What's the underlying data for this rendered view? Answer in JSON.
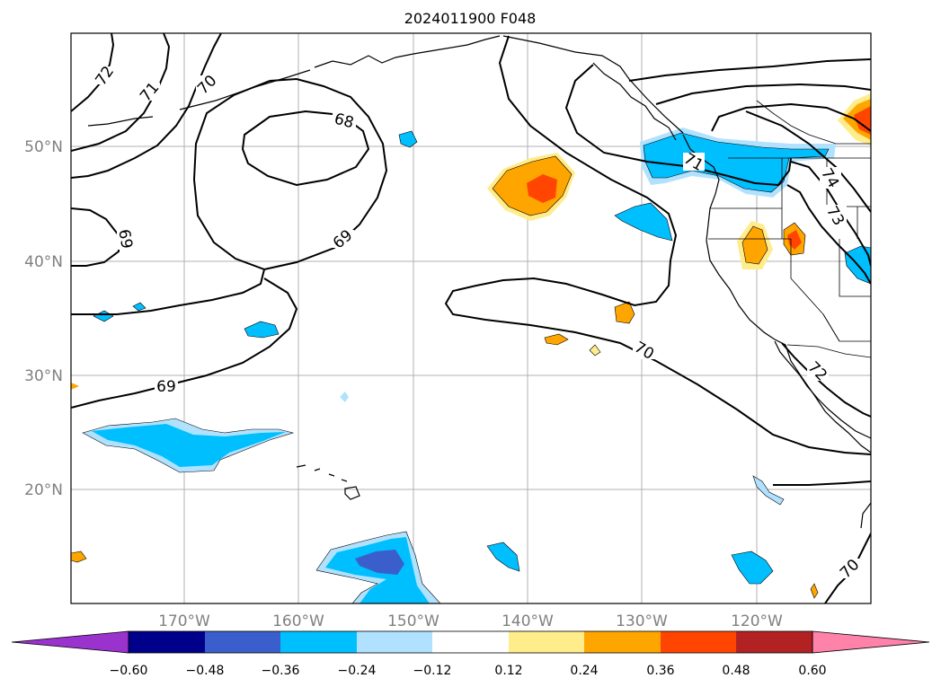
{
  "title": "2024011900 F048",
  "lat_labels": [
    "50°N",
    "40°N",
    "30°N",
    "20°N"
  ],
  "lon_labels": [
    "170°W",
    "160°W",
    "150°W",
    "140°W",
    "130°W",
    "120°W"
  ],
  "contour_labels": [
    "72",
    "71",
    "70",
    "68",
    "69",
    "69",
    "69",
    "74",
    "73",
    "71",
    "70",
    "72",
    "70"
  ],
  "colorbar": {
    "ticks": [
      "−0.60",
      "−0.48",
      "−0.36",
      "−0.24",
      "−0.12",
      "0.12",
      "0.24",
      "0.36",
      "0.48",
      "0.60"
    ],
    "colors": [
      "#9a32cd",
      "#00008b",
      "#3a5fcd",
      "#00bfff",
      "#b0e2ff",
      "#ffffff",
      "#ffec8b",
      "#ffa500",
      "#ff4500",
      "#b22222",
      "#ff82ab"
    ]
  }
}
